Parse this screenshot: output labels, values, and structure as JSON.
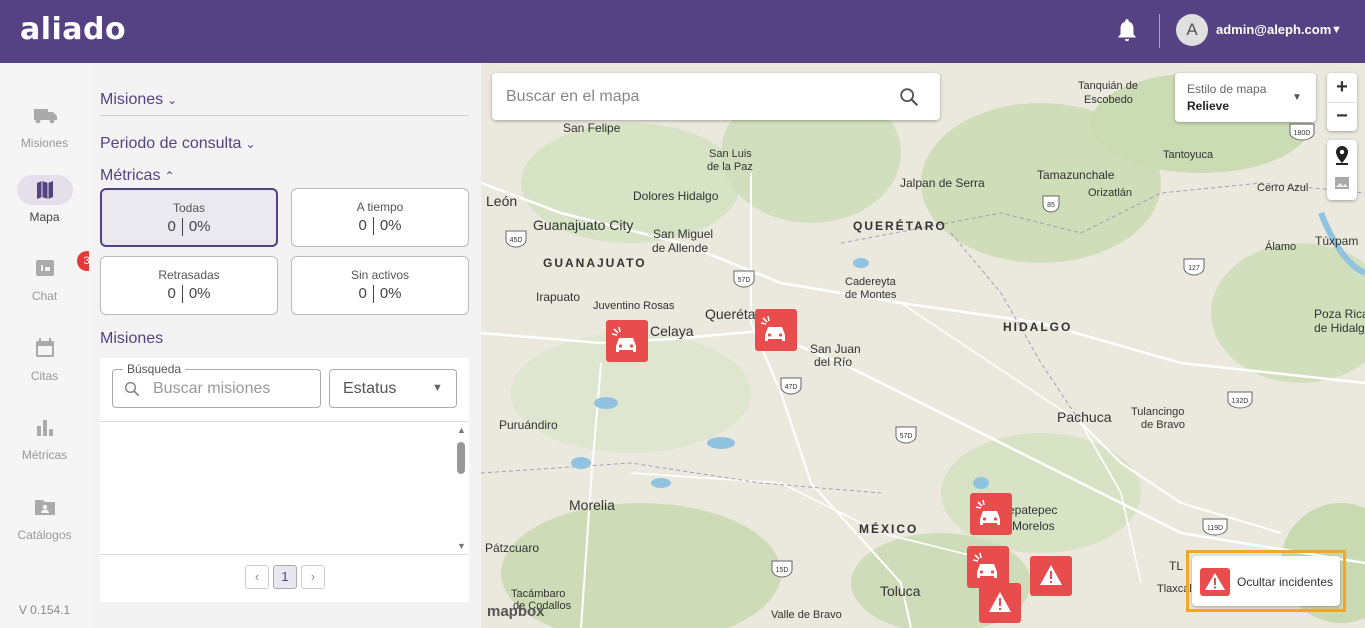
{
  "header": {
    "logo": "aliado",
    "avatar_initial": "A",
    "user_email": "admin@aleph.com",
    "bell_icon": "bell-icon",
    "caret_icon": "caret-down-icon"
  },
  "sidenav": {
    "items": [
      {
        "label": "Misiones",
        "icon": "truck-icon"
      },
      {
        "label": "Mapa",
        "icon": "map-icon",
        "active": true
      },
      {
        "label": "Chat",
        "icon": "chat-icon",
        "badge": "3"
      },
      {
        "label": "Citas",
        "icon": "calendar-icon"
      },
      {
        "label": "Métricas",
        "icon": "bar-chart-icon"
      },
      {
        "label": "Catálogos",
        "icon": "folder-user-icon"
      }
    ],
    "version": "V 0.154.1"
  },
  "panel": {
    "misiones_title": "Misiones",
    "periodo_title": "Periodo de consulta",
    "metricas_title": "Métricas",
    "metrics": [
      {
        "label": "Todas",
        "count": "0",
        "pct": "0%",
        "selected": true
      },
      {
        "label": "A tiempo",
        "count": "0",
        "pct": "0%"
      },
      {
        "label": "Retrasadas",
        "count": "0",
        "pct": "0%"
      },
      {
        "label": "Sin activos",
        "count": "0",
        "pct": "0%"
      }
    ],
    "list_title": "Misiones",
    "search_legend": "Búsqueda",
    "search_placeholder": "Buscar misiones",
    "status_value": "Estatus",
    "pager": {
      "prev": "‹",
      "current": "1",
      "next": "›"
    }
  },
  "map": {
    "search_placeholder": "Buscar en el mapa",
    "style_label": "Estilo de mapa",
    "style_value": "Relieve",
    "zoom_in": "+",
    "zoom_out": "−",
    "hide_incidents": "Ocultar incidentes",
    "attribution": "mapbox",
    "places": [
      "San Felipe",
      "Tanquián de",
      "Escobedo",
      "San Luis",
      "de la Paz",
      "Tantoyuca",
      "Dolores Hidalgo",
      "Jalpan de Serra",
      "Tamazunchale",
      "León",
      "Orizatlán",
      "Cerro Azul",
      "Guanajuato City",
      "San Miguel",
      "de Allende",
      "QUERÉTARO",
      "Álamo",
      "Túxpam",
      "GUANAJUATO",
      "Cadereyta",
      "de Montes",
      "Irapuato",
      "Juventino Rosas",
      "Querétaro",
      "Poza Rica",
      "de Hidalgo",
      "Celaya",
      "San Juan",
      "del Río",
      "HIDALGO",
      "Pachuca",
      "Tulancingo",
      "de Bravo",
      "Puruándiro",
      "Morelia",
      "Tepatepec",
      "Morelos",
      "MÉXICO",
      "Pátzcuaro",
      "Toluca",
      "Tacámbaro",
      "de Codallos",
      "Valle de Bravo",
      "Tlaxcala",
      "TL"
    ],
    "shields": [
      "45D",
      "57D",
      "47D",
      "57D",
      "15D",
      "85",
      "127",
      "132D",
      "119D",
      "180D"
    ]
  }
}
